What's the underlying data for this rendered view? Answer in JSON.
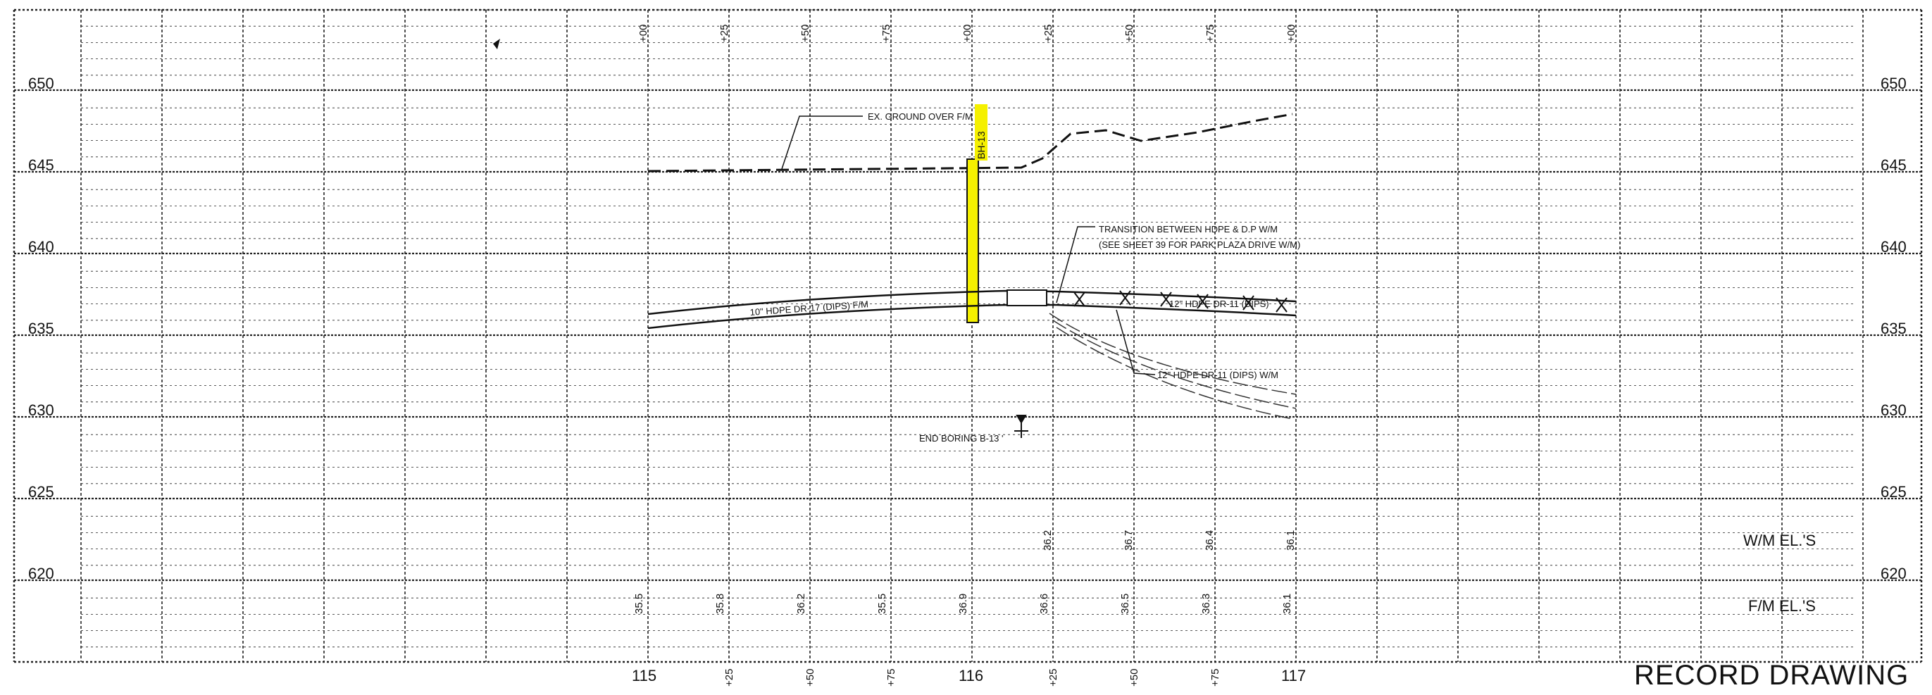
{
  "drawing": {
    "stamp": "RECORD DRAWING",
    "elevation_labels": [
      "650",
      "645",
      "640",
      "635",
      "630",
      "625",
      "620"
    ],
    "station_labels": [
      "115",
      "116",
      "117"
    ],
    "top_ticks": [
      "+00",
      "+25",
      "+50",
      "+75",
      "+00",
      "+25",
      "+50",
      "+75",
      "+00"
    ],
    "bottom_ticks": [
      "+25",
      "+50",
      "+75",
      "+25",
      "+50",
      "+75"
    ],
    "row_labels": {
      "wm": "W/M EL.'S",
      "fm": "F/M EL.'S"
    },
    "wm_elevations": [
      "36.2",
      "36.7",
      "36.4",
      "36.1"
    ],
    "fm_elevations": [
      "35.5",
      "35.8",
      "36.2",
      "35.5",
      "36.9",
      "36.6",
      "36.5",
      "36.3",
      "36.1"
    ],
    "annotations": {
      "ground": "EX. GROUND OVER F/M",
      "boring_tag": "BH-13",
      "transition_line1": "TRANSITION BETWEEN HDPE & D.P W/M",
      "transition_line2": "(SEE SHEET 39 FOR PARK PLAZA DRIVE W/M)",
      "fm_pipe": "10\" HDPE DR-17 (DIPS) F/M",
      "wm_pipe_upper": "12\" HDPE DR-11 (DIPS)",
      "wm_pipe_lower": "12\" HDPE DR-11 (DIPS) W/M",
      "end_boring": "END BORING B-13 '"
    }
  }
}
